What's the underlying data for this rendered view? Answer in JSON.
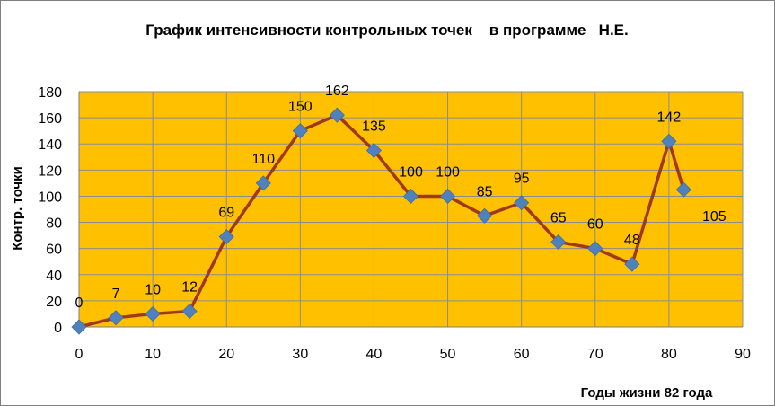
{
  "chart_data": {
    "type": "line",
    "title": "График интенсивности контрольных точек    в программе   Н.Е.",
    "xlabel": "Годы жизни 82 года",
    "ylabel": "Контр. точки",
    "xlim": [
      0,
      90
    ],
    "ylim": [
      0,
      180
    ],
    "xticks": [
      "0",
      "10",
      "20",
      "30",
      "40",
      "50",
      "60",
      "70",
      "80",
      "90"
    ],
    "yticks": [
      "0",
      "20",
      "40",
      "60",
      "80",
      "100",
      "120",
      "140",
      "160",
      "180"
    ],
    "grid": true,
    "legend": "none",
    "colors": {
      "plot_bg": "#FFC000",
      "line": "#A0381E",
      "marker": "#4F81BD",
      "grid": "#8C8C8C"
    },
    "series": [
      {
        "x": [
          0,
          5,
          10,
          15,
          20,
          25,
          30,
          35,
          40,
          45,
          50,
          55,
          60,
          65,
          70,
          75,
          80,
          82
        ],
        "y": [
          0,
          7,
          10,
          12,
          69,
          110,
          150,
          162,
          135,
          100,
          100,
          85,
          95,
          65,
          60,
          48,
          142,
          105
        ],
        "labels": [
          "0",
          "7",
          "10",
          "12",
          "69",
          "110",
          "150",
          "162",
          "135",
          "100",
          "100",
          "85",
          "95",
          "65",
          "60",
          "48",
          "142",
          "105"
        ]
      }
    ]
  }
}
